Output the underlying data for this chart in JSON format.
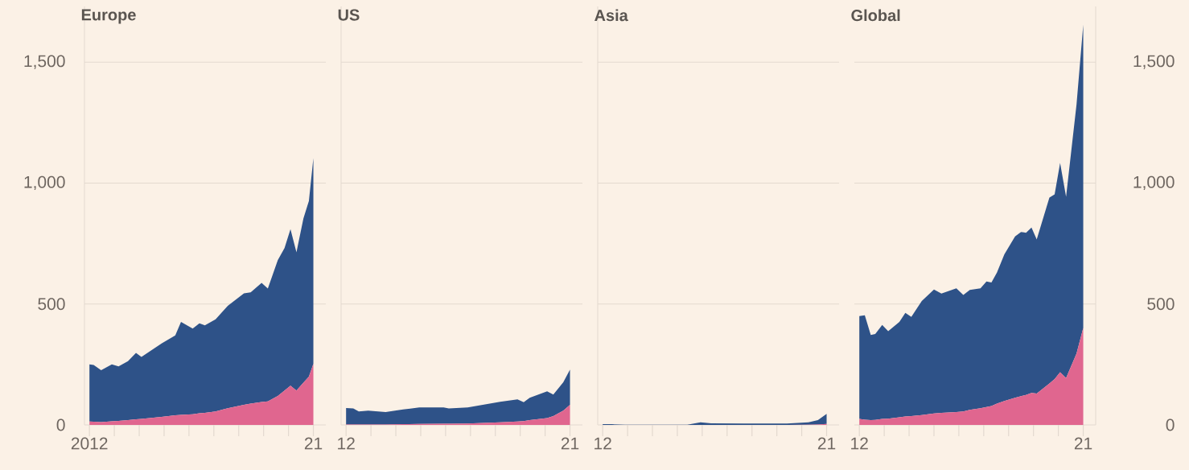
{
  "chart_data": [
    {
      "type": "area",
      "stacked": true,
      "title": "Europe",
      "grid": "y",
      "x": [
        2012.0,
        2012.17,
        2012.47,
        2012.9,
        2013.17,
        2013.55,
        2013.87,
        2014.09,
        2014.9,
        2015.45,
        2015.68,
        2016.15,
        2016.42,
        2016.64,
        2017.07,
        2017.56,
        2018.21,
        2018.48,
        2018.92,
        2019.17,
        2019.57,
        2019.84,
        2020.08,
        2020.32,
        2020.6,
        2020.82,
        2021.0
      ],
      "xlim": [
        2011.8,
        2021.5
      ],
      "xticks": [
        {
          "value": 2012,
          "label": "2012"
        },
        {
          "value": 2013,
          "label": null
        },
        {
          "value": 2014,
          "label": null
        },
        {
          "value": 2015,
          "label": null
        },
        {
          "value": 2016,
          "label": null
        },
        {
          "value": 2017,
          "label": null
        },
        {
          "value": 2018,
          "label": null
        },
        {
          "value": 2019,
          "label": null
        },
        {
          "value": 2020,
          "label": null
        },
        {
          "value": 2021,
          "label": "21"
        }
      ],
      "ylim": [
        0,
        1730
      ],
      "yticks": [
        0,
        500,
        {
          "value": 1000,
          "label": "1,000"
        },
        {
          "value": 1500,
          "label": "1,500"
        }
      ],
      "series": [
        {
          "color": "#e0668f",
          "values": [
            14,
            13,
            12,
            15,
            17,
            20,
            23,
            25,
            33,
            40,
            42,
            44,
            48,
            50,
            56,
            69,
            83,
            88,
            95,
            97,
            120,
            142,
            162,
            142,
            175,
            200,
            253
          ]
        },
        {
          "color": "#2e5288",
          "values": [
            236,
            235,
            214,
            235,
            225,
            244,
            275,
            256,
            304,
            330,
            384,
            354,
            372,
            362,
            381,
            423,
            461,
            460,
            492,
            467,
            561,
            589,
            647,
            572,
            678,
            726,
            850
          ]
        }
      ]
    },
    {
      "type": "area",
      "stacked": true,
      "title": "US",
      "grid": "y",
      "tick_labels": "x",
      "x": [
        2012.0,
        2012.29,
        2012.51,
        2012.89,
        2013.59,
        2014.29,
        2014.94,
        2015.92,
        2016.13,
        2016.89,
        2018.19,
        2018.89,
        2019.14,
        2019.38,
        2020.08,
        2020.33,
        2020.73,
        2021.0
      ],
      "xlim": [
        2011.8,
        2021.5
      ],
      "xticks": [
        {
          "value": 2012,
          "label": "12"
        },
        {
          "value": 2013,
          "label": null
        },
        {
          "value": 2014,
          "label": null
        },
        {
          "value": 2015,
          "label": null
        },
        {
          "value": 2016,
          "label": null
        },
        {
          "value": 2017,
          "label": null
        },
        {
          "value": 2018,
          "label": null
        },
        {
          "value": 2019,
          "label": null
        },
        {
          "value": 2020,
          "label": null
        },
        {
          "value": 2021,
          "label": "21"
        }
      ],
      "ylim": [
        0,
        1730
      ],
      "yticks": [
        0,
        500,
        1000,
        1500
      ],
      "series": [
        {
          "color": "#e0668f",
          "values": [
            2,
            2,
            2,
            2,
            2,
            3,
            4,
            5,
            5,
            6,
            11,
            14,
            16,
            20,
            28,
            37,
            59,
            83
          ]
        },
        {
          "color": "#2e5288",
          "values": [
            68,
            66,
            54,
            57,
            51,
            61,
            68,
            67,
            63,
            66,
            85,
            92,
            78,
            92,
            111,
            89,
            117,
            146
          ]
        }
      ]
    },
    {
      "type": "area",
      "stacked": true,
      "title": "Asia",
      "grid": "y",
      "tick_labels": "x",
      "x": [
        2012.0,
        2012.36,
        2012.9,
        2015.4,
        2015.93,
        2016.36,
        2017.67,
        2019.4,
        2020.27,
        2020.65,
        2021.0
      ],
      "xlim": [
        2011.8,
        2021.5
      ],
      "xticks": [
        {
          "value": 2012,
          "label": "12"
        },
        {
          "value": 2013,
          "label": null
        },
        {
          "value": 2014,
          "label": null
        },
        {
          "value": 2015,
          "label": null
        },
        {
          "value": 2016,
          "label": null
        },
        {
          "value": 2017,
          "label": null
        },
        {
          "value": 2018,
          "label": null
        },
        {
          "value": 2019,
          "label": null
        },
        {
          "value": 2020,
          "label": null
        },
        {
          "value": 2021,
          "label": "21"
        }
      ],
      "ylim": [
        0,
        1730
      ],
      "yticks": [
        0,
        500,
        1000,
        1500
      ],
      "series": [
        {
          "color": "#e0668f",
          "values": [
            0,
            0,
            0,
            0,
            0,
            0,
            0,
            0,
            1,
            2,
            4
          ]
        },
        {
          "color": "#2e5288",
          "values": [
            3,
            3,
            1,
            1,
            11,
            7,
            6,
            6,
            10,
            18,
            42
          ]
        }
      ]
    },
    {
      "type": "area",
      "stacked": true,
      "title": "Global",
      "grid": "y",
      "x": [
        2012.0,
        2012.22,
        2012.46,
        2012.64,
        2012.92,
        2013.16,
        2013.61,
        2013.85,
        2014.09,
        2014.51,
        2015.0,
        2015.3,
        2015.9,
        2016.18,
        2016.44,
        2016.87,
        2017.11,
        2017.31,
        2017.53,
        2017.83,
        2018.26,
        2018.5,
        2018.7,
        2018.92,
        2019.13,
        2019.64,
        2019.85,
        2020.07,
        2020.31,
        2020.73,
        2021.0
      ],
      "xlim": [
        2011.8,
        2021.5
      ],
      "xticks": [
        {
          "value": 2012,
          "label": "12"
        },
        {
          "value": 2013,
          "label": null
        },
        {
          "value": 2014,
          "label": null
        },
        {
          "value": 2015,
          "label": null
        },
        {
          "value": 2016,
          "label": null
        },
        {
          "value": 2017,
          "label": null
        },
        {
          "value": 2018,
          "label": null
        },
        {
          "value": 2019,
          "label": null
        },
        {
          "value": 2020,
          "label": null
        },
        {
          "value": 2021,
          "label": "21"
        }
      ],
      "y2lim": [
        0,
        1730
      ],
      "y2ticks": [
        0,
        500,
        {
          "value": 1000,
          "label": "1,000"
        },
        {
          "value": 1500,
          "label": "1,500"
        }
      ],
      "series": [
        {
          "color": "#e0668f",
          "axis": "y2",
          "values": [
            25,
            22,
            20,
            21,
            25,
            26,
            32,
            35,
            37,
            41,
            47,
            50,
            53,
            56,
            62,
            69,
            74,
            78,
            88,
            99,
            112,
            119,
            124,
            132,
            130,
            171,
            190,
            218,
            194,
            295,
            401
          ]
        },
        {
          "color": "#2e5288",
          "axis": "y2",
          "values": [
            425,
            431,
            352,
            355,
            388,
            362,
            394,
            428,
            410,
            471,
            513,
            493,
            512,
            481,
            496,
            496,
            519,
            511,
            542,
            606,
            667,
            679,
            670,
            684,
            637,
            769,
            763,
            865,
            749,
            1030,
            1253
          ]
        }
      ]
    }
  ]
}
